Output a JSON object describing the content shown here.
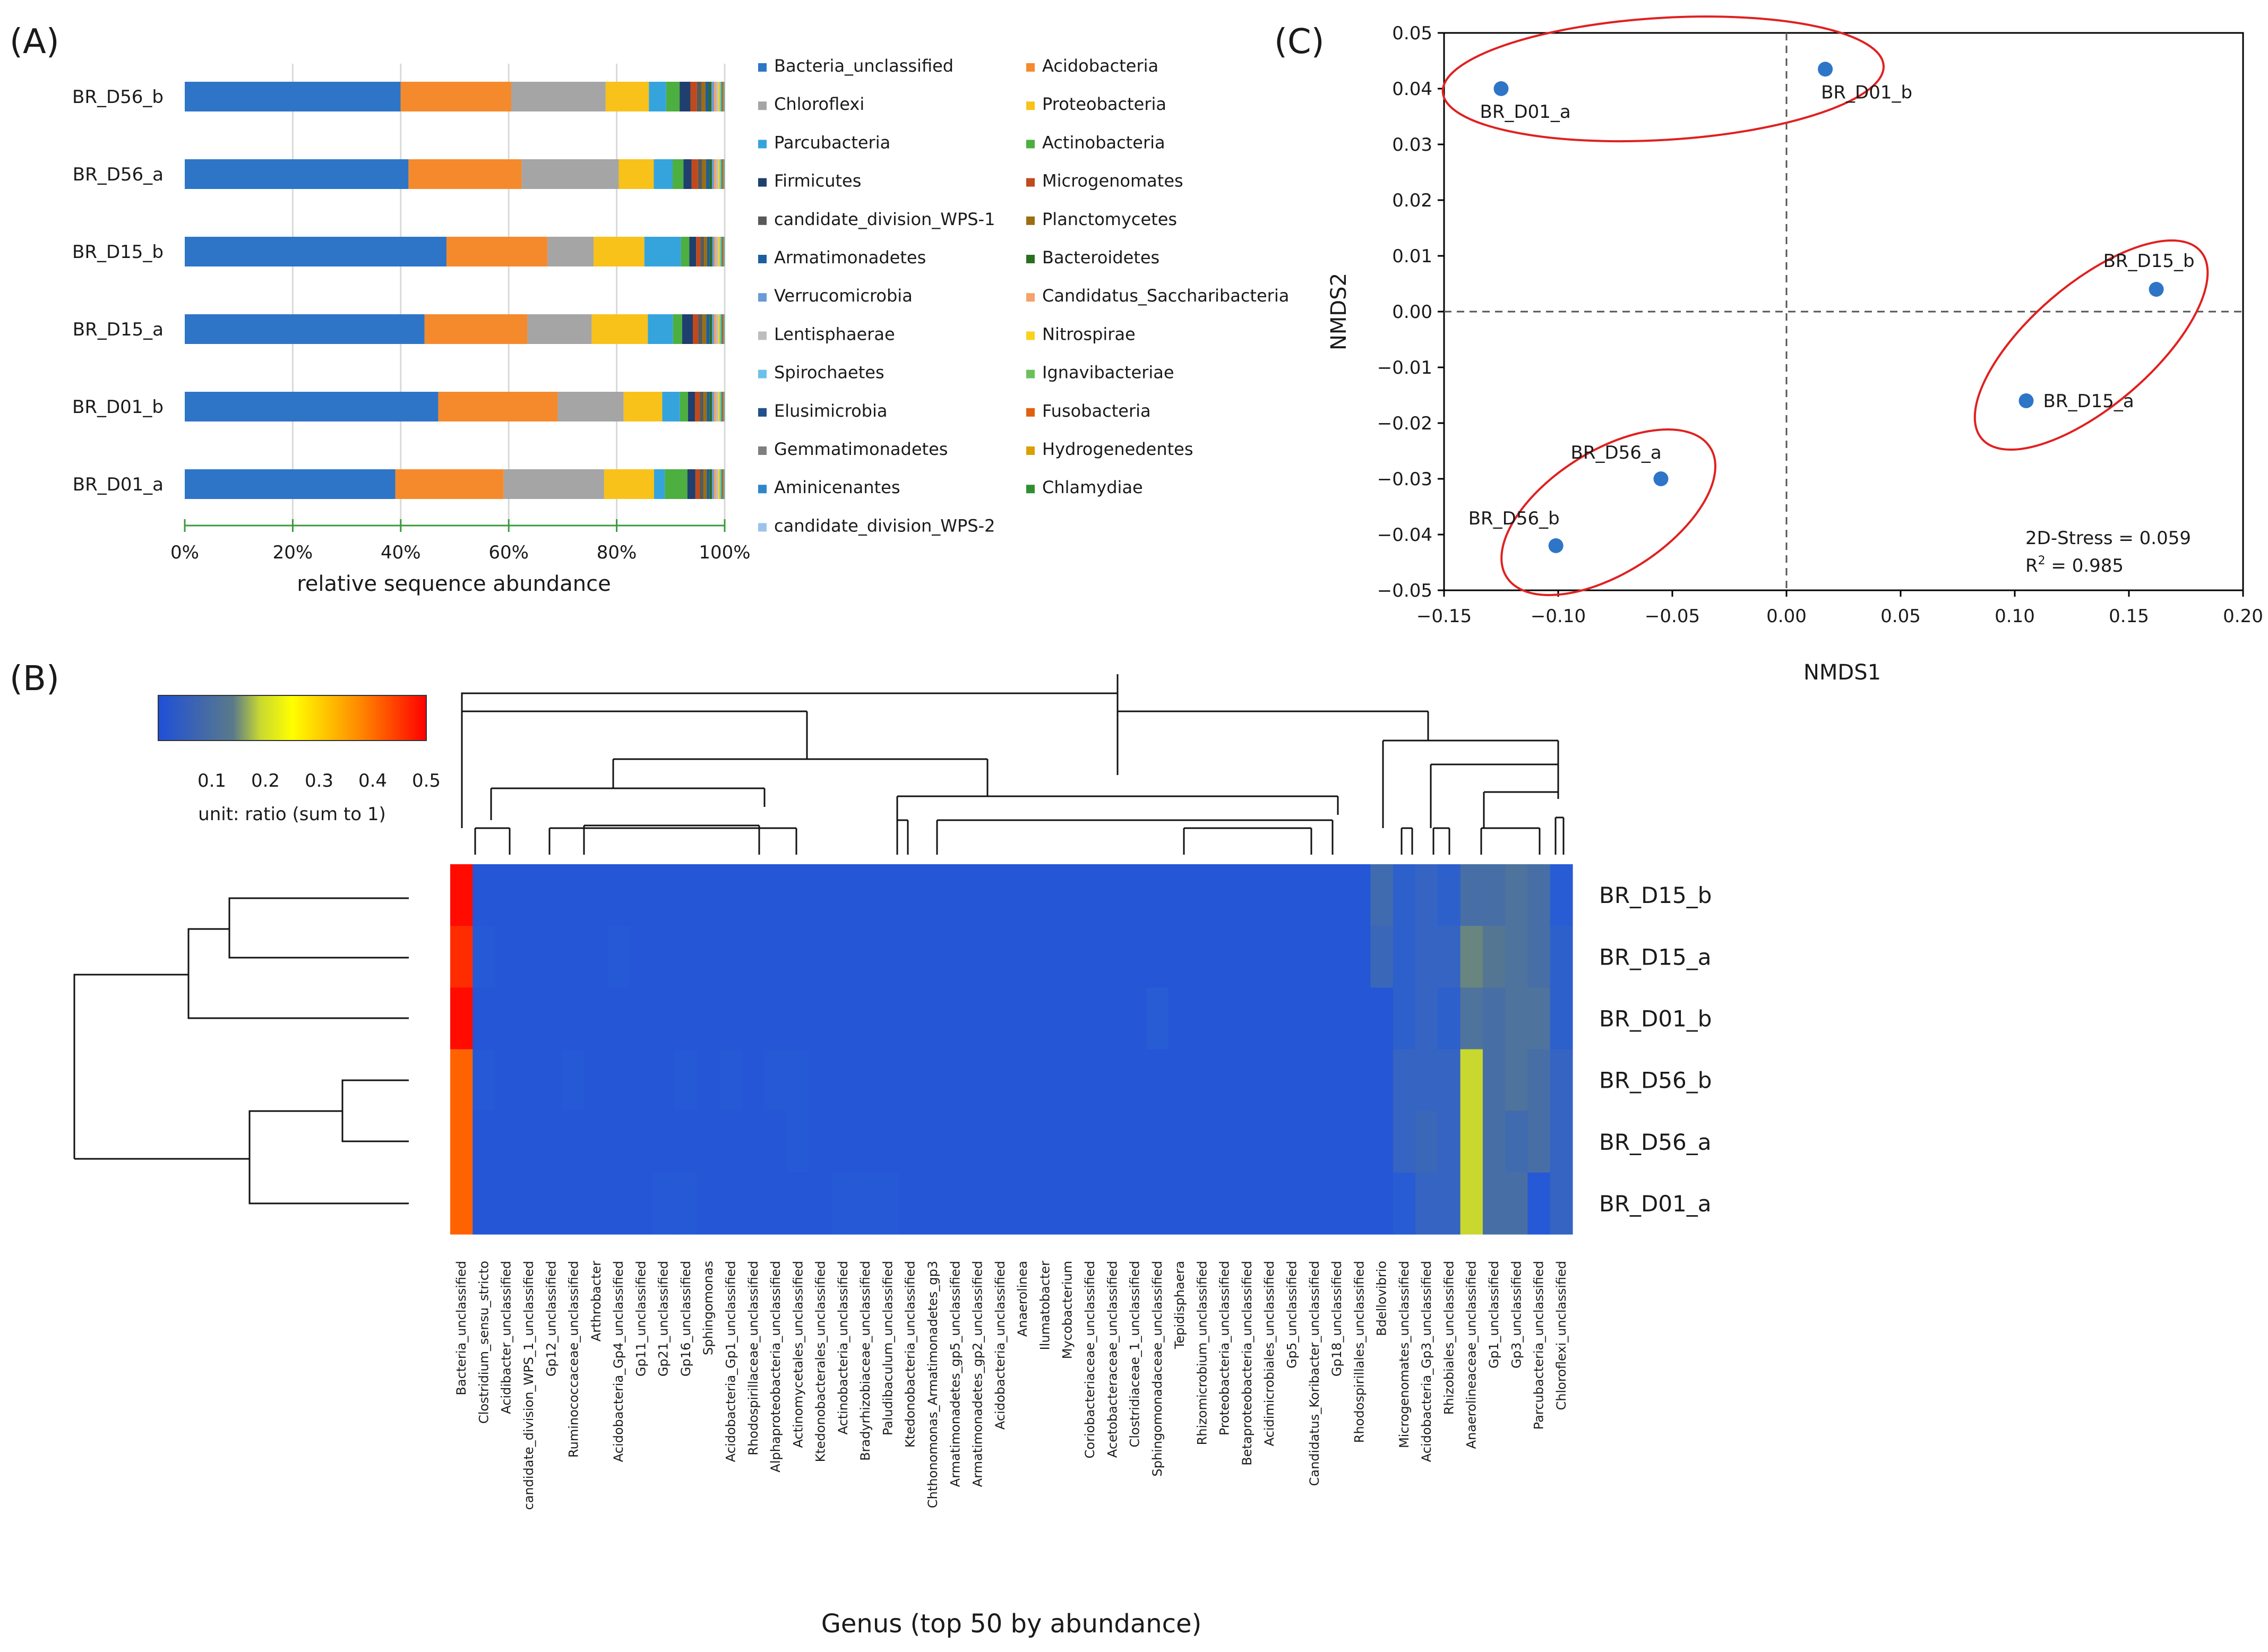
{
  "panels": {
    "A": {
      "label": "(A)",
      "chart_data": {
        "type": "bar",
        "orientation": "horizontal",
        "stacked": true,
        "categories": [
          "BR_D56_b",
          "BR_D56_a",
          "BR_D15_b",
          "BR_D15_a",
          "BR_D01_b",
          "BR_D01_a"
        ],
        "series": [
          {
            "name": "Bacteria_unclassified",
            "color": "#2e75c8",
            "values": [
              40.0,
              41.5,
              50.0,
              44.8,
              47.3,
              39.2
            ]
          },
          {
            "name": "Acidobacteria",
            "color": "#f58a2c",
            "values": [
              20.5,
              21.0,
              19.3,
              19.2,
              22.3,
              20.2
            ]
          },
          {
            "name": "Chloroflexi",
            "color": "#a5a5a5",
            "values": [
              17.5,
              18.0,
              8.8,
              12.0,
              12.3,
              18.7
            ]
          },
          {
            "name": "Proteobacteria",
            "color": "#f8c21a",
            "values": [
              8.0,
              6.5,
              9.7,
              10.5,
              7.2,
              9.3
            ]
          },
          {
            "name": "Parcubacteria",
            "color": "#35a4dd",
            "values": [
              3.2,
              3.5,
              7.0,
              4.7,
              3.3,
              2.0
            ]
          },
          {
            "name": "Actinobacteria",
            "color": "#4caf3f",
            "values": [
              2.5,
              2.0,
              1.6,
              1.7,
              1.5,
              4.2
            ]
          },
          {
            "name": "Firmicutes",
            "color": "#1f3f6e",
            "values": [
              2.0,
              1.5,
              1.3,
              2.0,
              1.3,
              1.5
            ]
          },
          {
            "name": "Microgenomates",
            "color": "#c04a1c",
            "values": [
              1.2,
              1.2,
              0.8,
              1.0,
              0.9,
              0.8
            ]
          },
          {
            "name": "candidate_division_WPS-1",
            "color": "#595959",
            "values": [
              0.9,
              0.8,
              0.7,
              0.8,
              0.7,
              0.7
            ]
          },
          {
            "name": "Planctomycetes",
            "color": "#9c6e10",
            "values": [
              0.7,
              0.7,
              0.6,
              0.7,
              0.6,
              0.6
            ]
          },
          {
            "name": "Armatimonadetes",
            "color": "#1e5e9e",
            "values": [
              0.6,
              0.6,
              0.5,
              0.6,
              0.5,
              0.5
            ]
          },
          {
            "name": "Bacteroidetes",
            "color": "#2a6e22",
            "values": [
              0.5,
              0.5,
              0.5,
              0.5,
              0.5,
              0.5
            ]
          },
          {
            "name": "Verrucomicrobia",
            "color": "#6b9ad6",
            "values": [
              0.5,
              0.4,
              0.4,
              0.4,
              0.4,
              0.4
            ]
          },
          {
            "name": "Candidatus_Saccharibacteria",
            "color": "#f4a36b",
            "values": [
              0.4,
              0.4,
              0.4,
              0.4,
              0.4,
              0.4
            ]
          },
          {
            "name": "Lentisphaerae",
            "color": "#bdbdbd",
            "values": [
              0.3,
              0.3,
              0.3,
              0.3,
              0.3,
              0.3
            ]
          },
          {
            "name": "Nitrospirae",
            "color": "#f9d21e",
            "values": [
              0.3,
              0.3,
              0.3,
              0.3,
              0.3,
              0.3
            ]
          },
          {
            "name": "Spirochaetes",
            "color": "#6cc0ea",
            "values": [
              0.2,
              0.2,
              0.2,
              0.2,
              0.2,
              0.2
            ]
          },
          {
            "name": "Ignavibacteriae",
            "color": "#6cc05a",
            "values": [
              0.2,
              0.2,
              0.2,
              0.2,
              0.2,
              0.2
            ]
          },
          {
            "name": "Elusimicrobia",
            "color": "#234f8c",
            "values": [
              0.1,
              0.1,
              0.1,
              0.1,
              0.1,
              0.1
            ]
          },
          {
            "name": "Fusobacteria",
            "color": "#e06010",
            "values": [
              0.1,
              0.1,
              0.1,
              0.1,
              0.1,
              0.1
            ]
          },
          {
            "name": "Gemmatimonadetes",
            "color": "#7f7f7f",
            "values": [
              0.1,
              0.1,
              0.1,
              0.1,
              0.1,
              0.1
            ]
          },
          {
            "name": "Hydrogenedentes",
            "color": "#d9a000",
            "values": [
              0.1,
              0.1,
              0.1,
              0.1,
              0.1,
              0.1
            ]
          },
          {
            "name": "Aminicenantes",
            "color": "#2f86c9",
            "values": [
              0.05,
              0.05,
              0.05,
              0.05,
              0.05,
              0.05
            ]
          },
          {
            "name": "Chlamydiae",
            "color": "#2f8f2f",
            "values": [
              0.05,
              0.05,
              0.05,
              0.05,
              0.05,
              0.05
            ]
          },
          {
            "name": "candidate_division_WPS-2",
            "color": "#9ec3ea",
            "values": [
              0.05,
              0.05,
              0.05,
              0.05,
              0.05,
              0.05
            ]
          }
        ],
        "xlim": [
          0,
          100
        ],
        "xticks": [
          "0%",
          "20%",
          "40%",
          "60%",
          "80%",
          "100%"
        ],
        "xlabel": "relative sequence abundance",
        "grid": true,
        "legend": "right, two columns"
      }
    },
    "B": {
      "label": "(B)",
      "chart_data": {
        "type": "heatmap",
        "rows": [
          "BR_D15_b",
          "BR_D15_a",
          "BR_D01_b",
          "BR_D56_b",
          "BR_D56_a",
          "BR_D01_a"
        ],
        "columns": [
          "Bacteria_unclassified",
          "Clostridium_sensu_stricto",
          "Acidibacter_unclassified",
          "candidate_division_WPS_1_unclassified",
          "Gp12_unclassified",
          "Ruminococcaceae_unclassified",
          "Arthrobacter",
          "Acidobacteria_Gp4_unclassified",
          "Gp11_unclassified",
          "Gp21_unclassified",
          "Gp16_unclassified",
          "Sphingomonas",
          "Acidobacteria_Gp1_unclassified",
          "Rhodospirillaceae_unclassified",
          "Alphaproteobacteria_unclassified",
          "Actinomycetales_unclassified",
          "Ktedonobacterales_unclassified",
          "Actinobacteria_unclassified",
          "Bradyrhizobiaceae_unclassified",
          "Paludibaculum_unclassified",
          "Ktedonobacteria_unclassified",
          "Chthonomonas_Armatimonadetes_gp3",
          "Armatimonadetes_gp5_unclassified",
          "Armatimonadetes_gp2_unclassified",
          "Acidobacteria_unclassified",
          "Anaerolinea",
          "Ilumatobacter",
          "Mycobacterium",
          "Coriobacteriaceae_unclassified",
          "Acetobacteraceae_unclassified",
          "Clostridiaceae_1_unclassified",
          "Sphingomonadaceae_unclassified",
          "Tepidisphaera",
          "Rhizomicrobium_unclassified",
          "Proteobacteria_unclassified",
          "Betaproteobacteria_unclassified",
          "Acidimicrobiales_unclassified",
          "Gp5_unclassified",
          "Candidatus_Koribacter_unclassified",
          "Gp18_unclassified",
          "Rhodospirillales_unclassified",
          "Bdellovibrio",
          "Microgenomates_unclassified",
          "Acidobacteria_Gp3_unclassified",
          "Rhizobiales_unclassified",
          "Anaerolineaceae_unclassified",
          "Gp1_unclassified",
          "Gp3_unclassified",
          "Parcubacteria_unclassified",
          "Chloroflexi_unclassified"
        ],
        "values_note": "ratio values per sample (rows) x genus (columns); first column highest",
        "values": [
          [
            0.49,
            0.02,
            0.02,
            0.02,
            0.02,
            0.02,
            0.02,
            0.02,
            0.02,
            0.02,
            0.02,
            0.02,
            0.02,
            0.02,
            0.02,
            0.02,
            0.02,
            0.02,
            0.02,
            0.02,
            0.02,
            0.02,
            0.02,
            0.02,
            0.02,
            0.02,
            0.02,
            0.02,
            0.02,
            0.02,
            0.02,
            0.02,
            0.02,
            0.02,
            0.02,
            0.02,
            0.02,
            0.02,
            0.02,
            0.02,
            0.02,
            0.08,
            0.05,
            0.06,
            0.05,
            0.09,
            0.09,
            0.1,
            0.09,
            0.04
          ],
          [
            0.46,
            0.03,
            0.02,
            0.02,
            0.02,
            0.02,
            0.02,
            0.03,
            0.02,
            0.02,
            0.02,
            0.02,
            0.02,
            0.02,
            0.02,
            0.02,
            0.02,
            0.02,
            0.02,
            0.02,
            0.02,
            0.02,
            0.02,
            0.02,
            0.02,
            0.02,
            0.02,
            0.02,
            0.02,
            0.02,
            0.02,
            0.02,
            0.02,
            0.02,
            0.02,
            0.02,
            0.02,
            0.02,
            0.02,
            0.02,
            0.02,
            0.07,
            0.05,
            0.06,
            0.06,
            0.13,
            0.11,
            0.1,
            0.09,
            0.05
          ],
          [
            0.49,
            0.02,
            0.02,
            0.02,
            0.02,
            0.02,
            0.02,
            0.02,
            0.02,
            0.02,
            0.02,
            0.02,
            0.02,
            0.02,
            0.02,
            0.02,
            0.02,
            0.02,
            0.02,
            0.02,
            0.02,
            0.02,
            0.02,
            0.02,
            0.02,
            0.02,
            0.02,
            0.02,
            0.02,
            0.02,
            0.02,
            0.04,
            0.02,
            0.02,
            0.02,
            0.02,
            0.02,
            0.02,
            0.02,
            0.02,
            0.02,
            0.02,
            0.05,
            0.06,
            0.05,
            0.1,
            0.09,
            0.1,
            0.1,
            0.05
          ],
          [
            0.41,
            0.03,
            0.02,
            0.02,
            0.02,
            0.03,
            0.02,
            0.02,
            0.02,
            0.02,
            0.03,
            0.02,
            0.03,
            0.02,
            0.03,
            0.03,
            0.02,
            0.02,
            0.02,
            0.02,
            0.02,
            0.02,
            0.02,
            0.02,
            0.02,
            0.02,
            0.02,
            0.02,
            0.02,
            0.02,
            0.02,
            0.02,
            0.02,
            0.02,
            0.02,
            0.02,
            0.02,
            0.02,
            0.02,
            0.02,
            0.02,
            0.02,
            0.06,
            0.06,
            0.06,
            0.2,
            0.09,
            0.1,
            0.09,
            0.06
          ],
          [
            0.41,
            0.02,
            0.02,
            0.02,
            0.02,
            0.02,
            0.02,
            0.02,
            0.02,
            0.02,
            0.02,
            0.02,
            0.02,
            0.02,
            0.02,
            0.03,
            0.02,
            0.02,
            0.02,
            0.02,
            0.02,
            0.02,
            0.02,
            0.02,
            0.02,
            0.02,
            0.02,
            0.02,
            0.02,
            0.02,
            0.02,
            0.02,
            0.02,
            0.02,
            0.02,
            0.02,
            0.02,
            0.02,
            0.02,
            0.02,
            0.02,
            0.02,
            0.06,
            0.07,
            0.06,
            0.2,
            0.09,
            0.08,
            0.09,
            0.06
          ],
          [
            0.41,
            0.02,
            0.02,
            0.02,
            0.02,
            0.02,
            0.02,
            0.02,
            0.02,
            0.03,
            0.03,
            0.02,
            0.02,
            0.02,
            0.02,
            0.02,
            0.02,
            0.03,
            0.03,
            0.03,
            0.02,
            0.02,
            0.02,
            0.02,
            0.02,
            0.02,
            0.02,
            0.02,
            0.02,
            0.02,
            0.02,
            0.02,
            0.02,
            0.02,
            0.02,
            0.02,
            0.02,
            0.02,
            0.02,
            0.02,
            0.02,
            0.02,
            0.04,
            0.06,
            0.06,
            0.2,
            0.09,
            0.09,
            0.03,
            0.06
          ]
        ],
        "colorbar": {
          "ticks": [
            "0.1",
            "0.2",
            "0.3",
            "0.4",
            "0.5"
          ],
          "range": [
            0,
            0.5
          ],
          "label": "unit: ratio (sum to 1)",
          "colors": [
            "#1f4fd8",
            "#f5f500",
            "#ff0000"
          ]
        },
        "xlabel": "Genus (top 50 by abundance)",
        "dendrograms": [
          "top (columns)",
          "left (rows)"
        ]
      }
    },
    "C": {
      "label": "(C)",
      "chart_data": {
        "type": "scatter",
        "points": [
          {
            "label": "BR_D01_a",
            "x": -0.125,
            "y": 0.04
          },
          {
            "label": "BR_D01_b",
            "x": 0.017,
            "y": 0.0435
          },
          {
            "label": "BR_D15_b",
            "x": 0.162,
            "y": 0.004
          },
          {
            "label": "BR_D15_a",
            "x": 0.105,
            "y": -0.016
          },
          {
            "label": "BR_D56_a",
            "x": -0.055,
            "y": -0.03
          },
          {
            "label": "BR_D56_b",
            "x": -0.101,
            "y": -0.042
          }
        ],
        "xlim": [
          -0.15,
          0.2
        ],
        "ylim": [
          -0.05,
          0.05
        ],
        "xticks": [
          "−0.15",
          "−0.10",
          "−0.05",
          "0.00",
          "0.05",
          "0.10",
          "0.15",
          "0.20"
        ],
        "yticks": [
          "0.05",
          "0.04",
          "0.03",
          "0.02",
          "0.01",
          "0.00",
          "−0.01",
          "−0.02",
          "−0.03",
          "−0.04",
          "−0.05"
        ],
        "xlabel": "NMDS1",
        "ylabel": "NMDS2",
        "annotation_stress": "2D-Stress = 0.059",
        "annotation_r2_prefix": "R",
        "annotation_r2_sup": "2",
        "annotation_r2_value": " = 0.985",
        "groups": [
          [
            "BR_D01_a",
            "BR_D01_b"
          ],
          [
            "BR_D15_b",
            "BR_D15_a"
          ],
          [
            "BR_D56_a",
            "BR_D56_b"
          ]
        ],
        "point_color": "#2e75c8",
        "ellipse_color": "#e02020"
      }
    }
  }
}
